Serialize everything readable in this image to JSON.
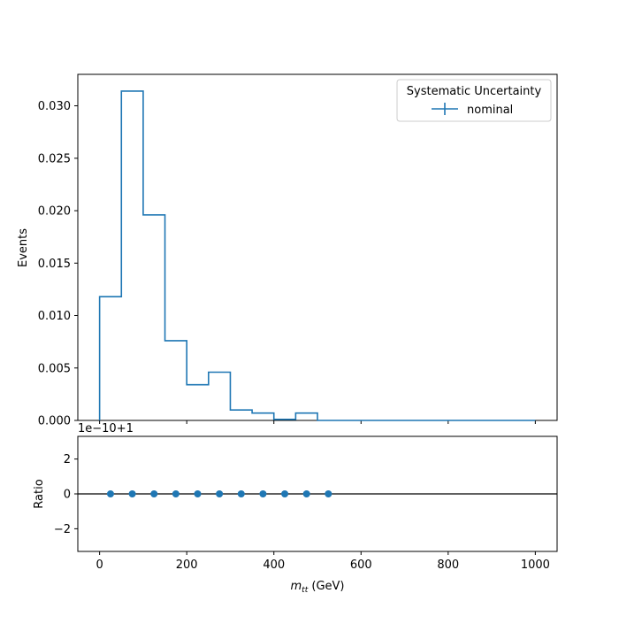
{
  "chart_data": [
    {
      "type": "histogram-step",
      "xlim": [
        -50,
        1050
      ],
      "ylim": [
        0,
        0.033
      ],
      "ylabel": "Events",
      "y_ticks": [
        "0.000",
        "0.005",
        "0.010",
        "0.015",
        "0.020",
        "0.025",
        "0.030"
      ],
      "y_tick_values": [
        0,
        0.005,
        0.01,
        0.015,
        0.02,
        0.025,
        0.03
      ],
      "bin_edges": [
        0,
        50,
        100,
        150,
        200,
        250,
        300,
        350,
        400,
        450,
        500,
        550,
        600,
        650,
        700,
        750,
        800,
        850,
        900,
        950,
        1000
      ],
      "values": [
        0.0118,
        0.0314,
        0.0196,
        0.0076,
        0.0034,
        0.0046,
        0.001,
        0.0007,
        0.0001,
        0.0007,
        0,
        0,
        0,
        0,
        0,
        0,
        0,
        0,
        0,
        0
      ],
      "series_color": "#1f77b4",
      "legend": {
        "title": "Systematic Uncertainty",
        "entries": [
          {
            "name": "nominal"
          }
        ],
        "placement": "top-right"
      }
    },
    {
      "type": "scatter",
      "xlim": [
        -50,
        1050
      ],
      "ylim": [
        -3.3,
        3.3
      ],
      "ylabel": "Ratio",
      "offset_text": "1e−10+1",
      "y_ticks": [
        "−2",
        "0",
        "2"
      ],
      "y_tick_values": [
        -2,
        0,
        2
      ],
      "x_ticks": [
        "0",
        "200",
        "400",
        "600",
        "800",
        "1000"
      ],
      "x_tick_values": [
        0,
        200,
        400,
        600,
        800,
        1000
      ],
      "x": [
        25,
        75,
        125,
        175,
        225,
        275,
        325,
        375,
        425,
        475,
        525
      ],
      "y": [
        0,
        0,
        0,
        0,
        0,
        0,
        0,
        0,
        0,
        0,
        0
      ],
      "reference_line": 0,
      "series_color": "#1f77b4"
    }
  ],
  "xlabel": {
    "symbol_main": "m",
    "symbol_sub": "tt",
    "unit": " (GeV)"
  }
}
